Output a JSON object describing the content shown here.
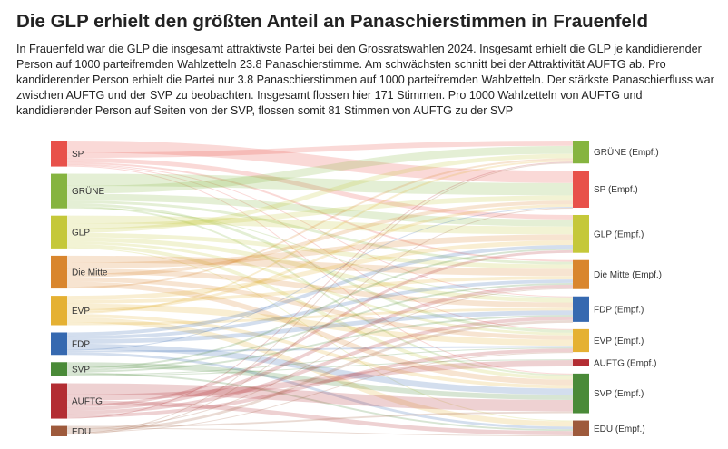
{
  "title": "Die GLP erhielt den größten Anteil an Panaschierstimmen in Frauenfeld",
  "description": "In Frauenfeld war die GLP die insgesamt attraktivste Partei bei den Grossratswahlen 2024. Insgesamt erhielt die GLP je kandidierender Person auf 1000 parteifremden Wahlzetteln 23.8 Panaschierstimme. Am schwächsten schnitt bei der Attraktivität AUFTG ab. Pro kandiderender Person erhielt die Partei nur 3.8 Panaschierstimmen auf 1000 parteifremden Wahlzetteln. Der stärkste Panaschierfluss war zwischen AUFTG und der SVP zu beobachten. Insgesamt flossen hier 171 Stimmen. Pro 1000 Wahlzetteln von AUFTG und kandidierender Person auf Seiten von der SVP, flossen somit 81 Stimmen von AUFTG zu der SVP",
  "chart_data": {
    "type": "sankey",
    "sources": [
      {
        "name": "SP",
        "color": "#e8514a",
        "value": 30
      },
      {
        "name": "GRÜNE",
        "color": "#86b440",
        "value": 40
      },
      {
        "name": "GLP",
        "color": "#c5c83a",
        "value": 38
      },
      {
        "name": "Die Mitte",
        "color": "#d9862e",
        "value": 38
      },
      {
        "name": "EVP",
        "color": "#e5b133",
        "value": 34
      },
      {
        "name": "FDP",
        "color": "#3669b0",
        "value": 26
      },
      {
        "name": "SVP",
        "color": "#4a8a38",
        "value": 16
      },
      {
        "name": "AUFTG",
        "color": "#b32d33",
        "value": 41
      },
      {
        "name": "EDU",
        "color": "#9e5a3c",
        "value": 12
      }
    ],
    "targets": [
      {
        "name": "GRÜNE (Empf.)",
        "color": "#86b440",
        "value": 26
      },
      {
        "name": "SP (Empf.)",
        "color": "#e8514a",
        "value": 42
      },
      {
        "name": "GLP (Empf.)",
        "color": "#c5c83a",
        "value": 43
      },
      {
        "name": "Die Mitte (Empf.)",
        "color": "#d9862e",
        "value": 33
      },
      {
        "name": "FDP (Empf.)",
        "color": "#3669b0",
        "value": 29
      },
      {
        "name": "EVP (Empf.)",
        "color": "#e5b133",
        "value": 26
      },
      {
        "name": "AUFTG (Empf.)",
        "color": "#b32d33",
        "value": 8
      },
      {
        "name": "SVP (Empf.)",
        "color": "#4a8a38",
        "value": 45
      },
      {
        "name": "EDU (Empf.)",
        "color": "#9e5a3c",
        "value": 18
      }
    ],
    "flows": [
      [
        0,
        1,
        14
      ],
      [
        0,
        0,
        6
      ],
      [
        0,
        2,
        5
      ],
      [
        0,
        3,
        2
      ],
      [
        0,
        4,
        1
      ],
      [
        0,
        5,
        1
      ],
      [
        0,
        7,
        1
      ],
      [
        1,
        1,
        14
      ],
      [
        1,
        0,
        9
      ],
      [
        1,
        2,
        8
      ],
      [
        1,
        3,
        3
      ],
      [
        1,
        5,
        3
      ],
      [
        1,
        7,
        2
      ],
      [
        1,
        4,
        1
      ],
      [
        2,
        2,
        9
      ],
      [
        2,
        1,
        6
      ],
      [
        2,
        0,
        5
      ],
      [
        2,
        3,
        5
      ],
      [
        2,
        4,
        5
      ],
      [
        2,
        5,
        3
      ],
      [
        2,
        7,
        4
      ],
      [
        2,
        8,
        1
      ],
      [
        3,
        3,
        8
      ],
      [
        3,
        2,
        7
      ],
      [
        3,
        4,
        6
      ],
      [
        3,
        1,
        4
      ],
      [
        3,
        5,
        5
      ],
      [
        3,
        7,
        6
      ],
      [
        3,
        0,
        2
      ],
      [
        4,
        2,
        5
      ],
      [
        4,
        3,
        4
      ],
      [
        4,
        5,
        7
      ],
      [
        4,
        1,
        3
      ],
      [
        4,
        0,
        2
      ],
      [
        4,
        7,
        4
      ],
      [
        4,
        8,
        6
      ],
      [
        4,
        4,
        3
      ],
      [
        5,
        2,
        4
      ],
      [
        5,
        3,
        4
      ],
      [
        5,
        4,
        5
      ],
      [
        5,
        7,
        7
      ],
      [
        5,
        1,
        1
      ],
      [
        5,
        5,
        2
      ],
      [
        5,
        8,
        3
      ],
      [
        6,
        7,
        6
      ],
      [
        6,
        2,
        2
      ],
      [
        6,
        3,
        2
      ],
      [
        6,
        4,
        2
      ],
      [
        6,
        8,
        2
      ],
      [
        6,
        5,
        1
      ],
      [
        6,
        6,
        1
      ],
      [
        7,
        7,
        13
      ],
      [
        7,
        6,
        7
      ],
      [
        7,
        8,
        5
      ],
      [
        7,
        2,
        3
      ],
      [
        7,
        3,
        4
      ],
      [
        7,
        4,
        4
      ],
      [
        7,
        5,
        4
      ],
      [
        7,
        0,
        1
      ],
      [
        8,
        7,
        2
      ],
      [
        8,
        8,
        1
      ],
      [
        8,
        3,
        1
      ],
      [
        8,
        4,
        3
      ],
      [
        8,
        5,
        1
      ],
      [
        8,
        0,
        1
      ],
      [
        8,
        1,
        1
      ],
      [
        8,
        6,
        0
      ],
      [
        8,
        2,
        0
      ]
    ]
  }
}
